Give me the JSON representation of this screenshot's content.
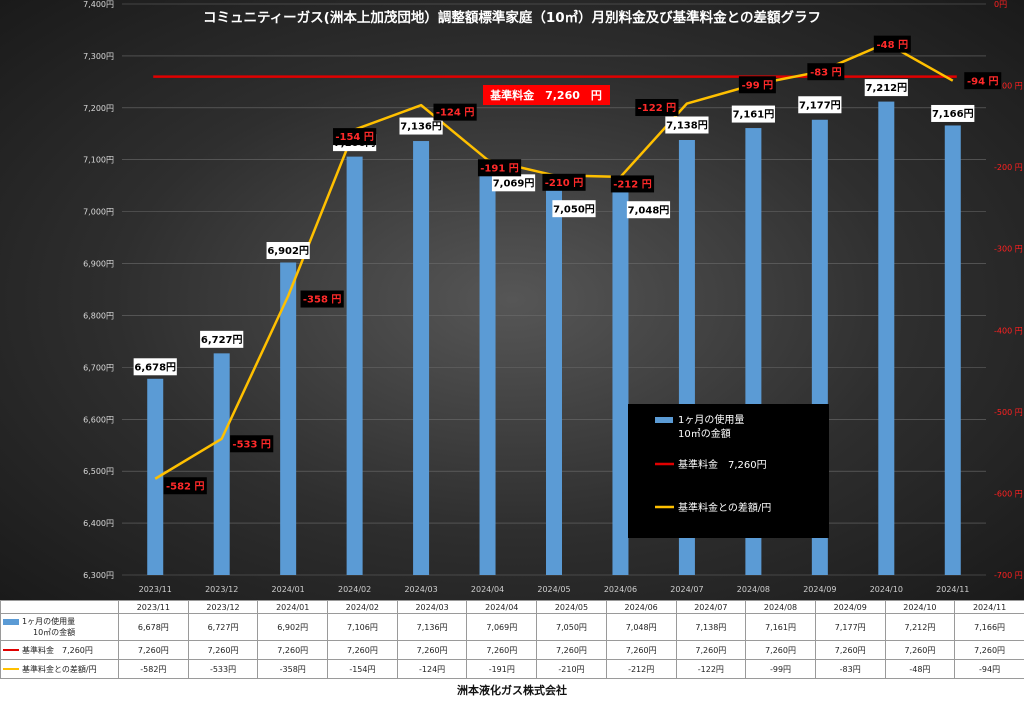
{
  "title": "コミュニティーガス(洲本上加茂団地）調整額標準家庭（10㎥）月別料金及び基準料金との差額グラフ",
  "footer": "洲本液化ガス株式会社",
  "base_label": "基準料金　7,260　円",
  "legend": {
    "bar_line1": "1ヶ月の使用量",
    "bar_line2": "10㎥の金額",
    "base": "基準料金　7,260円",
    "diff": "基準料金との差額/円"
  },
  "table": {
    "row1_label_a": "1ヶ月の使用量",
    "row1_label_b": "10㎥の金額",
    "row2_label": "基準料金　7,260円",
    "row3_label": "基準料金との差額/円"
  },
  "colors": {
    "bar": "#5b9bd5",
    "base": "#e00000",
    "diff": "#ffc000",
    "diff_label_bg": "#000000",
    "diff_label_fg": "#ff2a2a"
  },
  "chart_data": {
    "type": "bar",
    "categories": [
      "2023/11",
      "2023/12",
      "2024/01",
      "2024/02",
      "2024/03",
      "2024/04",
      "2024/05",
      "2024/06",
      "2024/07",
      "2024/08",
      "2024/09",
      "2024/10",
      "2024/11"
    ],
    "series": [
      {
        "name": "1ヶ月の使用量 10㎥の金額",
        "type": "bar",
        "axis": "left",
        "values": [
          6678,
          6727,
          6902,
          7106,
          7136,
          7069,
          7050,
          7048,
          7138,
          7161,
          7177,
          7212,
          7166
        ],
        "labels": [
          "6,678円",
          "6,727円",
          "6,902円",
          "7,106円",
          "7,136円",
          "7,069円",
          "7,050円",
          "7,048円",
          "7,138円",
          "7,161円",
          "7,177円",
          "7,212円",
          "7,166円"
        ]
      },
      {
        "name": "基準料金 7,260円",
        "type": "line",
        "axis": "left",
        "values": [
          7260,
          7260,
          7260,
          7260,
          7260,
          7260,
          7260,
          7260,
          7260,
          7260,
          7260,
          7260,
          7260
        ],
        "labels": [
          "7,260円",
          "7,260円",
          "7,260円",
          "7,260円",
          "7,260円",
          "7,260円",
          "7,260円",
          "7,260円",
          "7,260円",
          "7,260円",
          "7,260円",
          "7,260円",
          "7,260円"
        ]
      },
      {
        "name": "基準料金との差額/円",
        "type": "line",
        "axis": "right",
        "values": [
          -582,
          -533,
          -358,
          -154,
          -124,
          -191,
          -210,
          -212,
          -122,
          -99,
          -83,
          -48,
          -94
        ],
        "labels": [
          "-582 円",
          "-533 円",
          "-358 円",
          "-154 円",
          "-124 円",
          "-191 円",
          "-210 円",
          "-212 円",
          "-122 円",
          "-99 円",
          "-83 円",
          "-48 円",
          "-94 円"
        ],
        "table_labels": [
          "-582円",
          "-533円",
          "-358円",
          "-154円",
          "-124円",
          "-191円",
          "-210円",
          "-212円",
          "-122円",
          "-99円",
          "-83円",
          "-48円",
          "-94円"
        ]
      }
    ],
    "y_left": {
      "min": 6300,
      "max": 7400,
      "step": 100,
      "ticks": [
        "6,300円",
        "6,400円",
        "6,500円",
        "6,600円",
        "6,700円",
        "6,800円",
        "6,900円",
        "7,000円",
        "7,100円",
        "7,200円",
        "7,300円",
        "7,400円"
      ]
    },
    "y_right": {
      "min": -700,
      "max": 0,
      "step": 100,
      "ticks": [
        "-700 円",
        "-600 円",
        "-500 円",
        "-400 円",
        "-300 円",
        "-200 円",
        "-100 円",
        "0円"
      ]
    },
    "legend_position": "lower-right",
    "grid": true
  }
}
